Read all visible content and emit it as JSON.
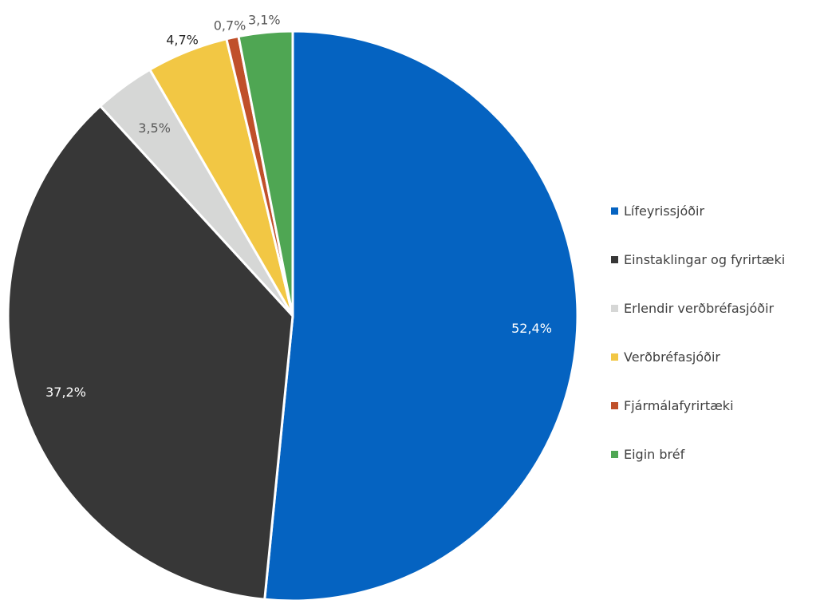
{
  "chart_data": {
    "type": "pie",
    "title": "",
    "start_angle_deg": 0,
    "direction": "clockwise",
    "series": [
      {
        "categories": [
          "Lífeyrissjóðir",
          "Einstaklingar og fyrirtæki",
          "Erlendir verðbréfasjóðir",
          "Verðbréfasjóðir",
          "Fjármálafyrirtæki",
          "Eigin bréf"
        ],
        "values": [
          52.4,
          37.2,
          3.5,
          4.7,
          0.7,
          3.1
        ],
        "data_labels": [
          "52,4%",
          "37,2%",
          "3,5%",
          "4,7%",
          "0,7%",
          "3,1%"
        ],
        "colors": [
          "#0563C1",
          "#373737",
          "#D6D7D6",
          "#F2C744",
          "#C0502A",
          "#4FA653"
        ]
      }
    ],
    "legend": {
      "placement": "right",
      "entries": [
        "Lífeyrissjóðir",
        "Einstaklingar og fyrirtæki",
        "Erlendir verðbréfasjóðir",
        "Verðbréfasjóðir",
        "Fjármálafyrirtæki",
        "Eigin bréf"
      ]
    },
    "label_colors": {
      "inside_on_dark": "#ffffff",
      "outside": "#595959",
      "dark_outside": "#262626"
    }
  }
}
